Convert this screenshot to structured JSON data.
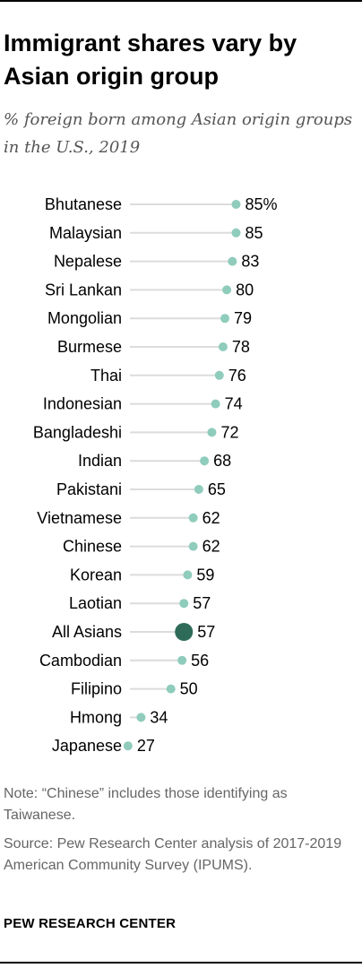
{
  "title": "Immigrant shares vary by Asian origin group",
  "subtitle": "% foreign born among Asian origin groups in the U.S., 2019",
  "note": "Note: “Chinese” includes those identifying as Taiwanese.",
  "source": "Source: Pew Research Center analysis of 2017-2019 American Community Survey (IPUMS).",
  "footer": "PEW RESEARCH CENTER",
  "colors": {
    "dot": "#8fccbb",
    "highlight": "#2e6b59",
    "highlight_label": "#3d8a73",
    "line": "#dcdcdc"
  },
  "chart_data": {
    "type": "scatter",
    "title": "Immigrant shares vary by Asian origin group",
    "subtitle": "% foreign born among Asian origin groups in the U.S., 2019",
    "value_suffix_first": "%",
    "highlight": "All Asians",
    "xlim": [
      0,
      100
    ],
    "grid": false,
    "categories": [
      "Bhutanese",
      "Malaysian",
      "Nepalese",
      "Sri Lankan",
      "Mongolian",
      "Burmese",
      "Thai",
      "Indonesian",
      "Bangladeshi",
      "Indian",
      "Pakistani",
      "Vietnamese",
      "Chinese",
      "Korean",
      "Laotian",
      "All Asians",
      "Cambodian",
      "Filipino",
      "Hmong",
      "Japanese"
    ],
    "values": [
      85,
      85,
      83,
      80,
      79,
      78,
      76,
      74,
      72,
      68,
      65,
      62,
      62,
      59,
      57,
      57,
      56,
      50,
      34,
      27
    ]
  }
}
